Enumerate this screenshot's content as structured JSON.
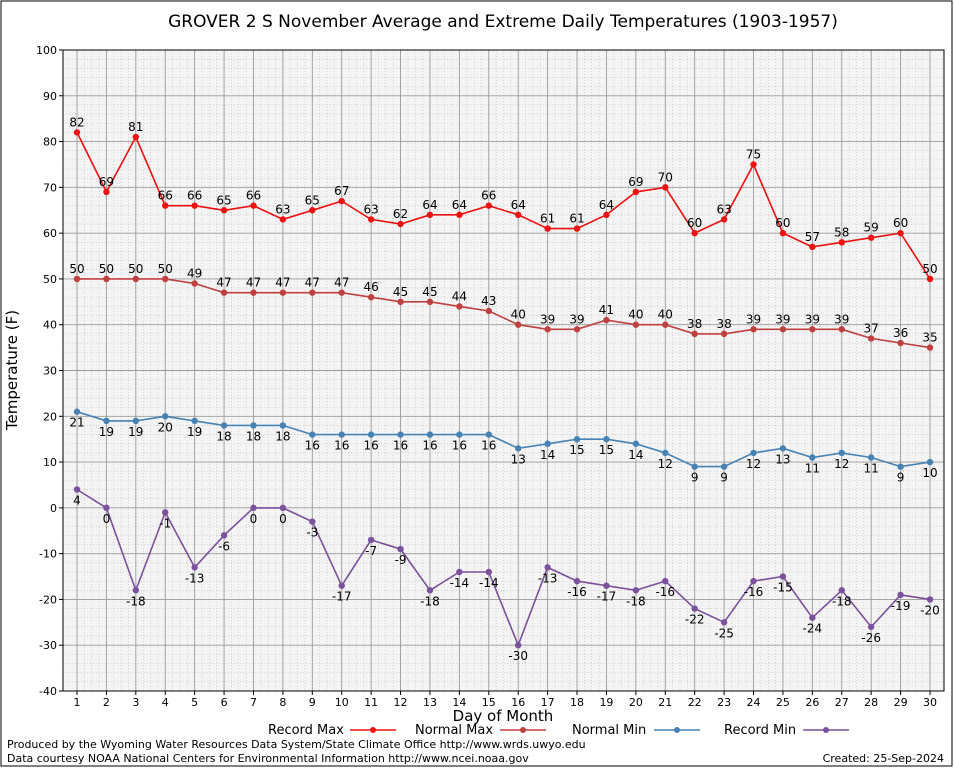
{
  "chart_data": {
    "type": "line",
    "title": "GROVER 2 S November Average and Extreme Daily Temperatures (1903-1957)",
    "xlabel": "Day of Month",
    "ylabel": "Temperature (F)",
    "ylim": [
      -40,
      100
    ],
    "yticks": [
      "-40",
      "-30",
      "-20",
      "-10",
      "0",
      "10",
      "20",
      "30",
      "40",
      "50",
      "60",
      "70",
      "80",
      "90",
      "100"
    ],
    "x": [
      1,
      2,
      3,
      4,
      5,
      6,
      7,
      8,
      9,
      10,
      11,
      12,
      13,
      14,
      15,
      16,
      17,
      18,
      19,
      20,
      21,
      22,
      23,
      24,
      25,
      26,
      27,
      28,
      29,
      30
    ],
    "grid": true,
    "series": [
      {
        "name": "Record Max",
        "color": "#ee1111",
        "label_pos": "above",
        "values": [
          82,
          69,
          81,
          66,
          66,
          65,
          66,
          63,
          65,
          67,
          63,
          62,
          64,
          64,
          66,
          64,
          61,
          61,
          64,
          69,
          70,
          60,
          63,
          75,
          60,
          57,
          58,
          59,
          60,
          50
        ]
      },
      {
        "name": "Normal Max",
        "color": "#c04040",
        "label_pos": "above",
        "values": [
          50,
          50,
          50,
          50,
          49,
          47,
          47,
          47,
          47,
          47,
          46,
          45,
          45,
          44,
          43,
          40,
          39,
          39,
          41,
          40,
          40,
          38,
          38,
          39,
          39,
          39,
          39,
          37,
          36,
          35
        ]
      },
      {
        "name": "Normal Min",
        "color": "#4682b4",
        "label_pos": "below",
        "values": [
          21,
          19,
          19,
          20,
          19,
          18,
          18,
          18,
          16,
          16,
          16,
          16,
          16,
          16,
          16,
          13,
          14,
          15,
          15,
          14,
          12,
          9,
          9,
          12,
          13,
          11,
          12,
          11,
          9,
          10
        ]
      },
      {
        "name": "Record Min",
        "color": "#7b509c",
        "label_pos": "below",
        "values": [
          4,
          0,
          -18,
          -1,
          -13,
          -6,
          0,
          0,
          -3,
          -17,
          -7,
          -9,
          -18,
          -14,
          -14,
          -30,
          -13,
          -16,
          -17,
          -18,
          -16,
          -22,
          -25,
          -16,
          -15,
          -24,
          -18,
          -26,
          -19,
          -20
        ]
      }
    ]
  },
  "credits": {
    "line1": "Produced by the Wyoming Water Resources Data System/State Climate Office http://www.wrds.uwyo.edu",
    "line2": "Data courtesy NOAA National Centers for Environmental Information http://www.ncei.noaa.gov",
    "created": "Created:  25-Sep-2024"
  }
}
